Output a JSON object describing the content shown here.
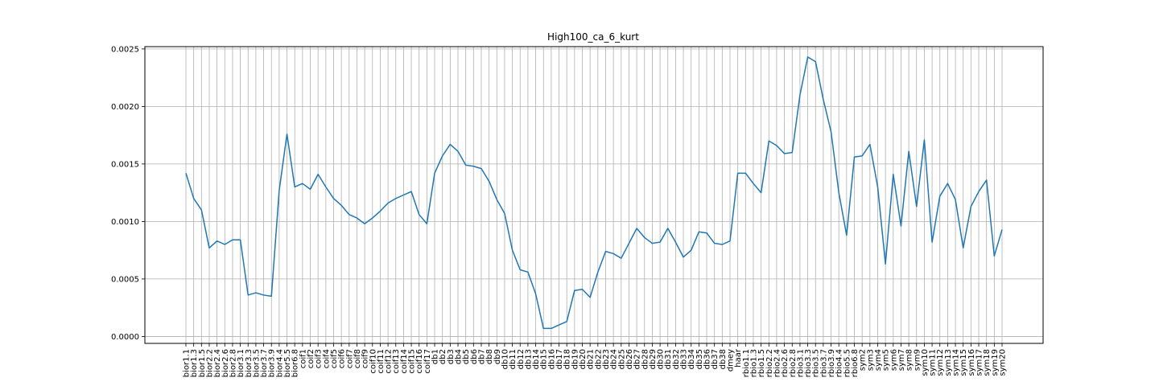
{
  "chart_data": {
    "type": "line",
    "title": "High100_ca_6_kurt",
    "xlabel": "",
    "ylabel": "",
    "grid": true,
    "color": "#1f77b4",
    "ylim": [
      -6e-05,
      0.00252
    ],
    "yticks": [
      "0.0000",
      "0.0005",
      "0.0010",
      "0.0015",
      "0.0020",
      "0.0025"
    ],
    "categories": [
      "bior1.1",
      "bior1.3",
      "bior1.5",
      "bior2.2",
      "bior2.4",
      "bior2.6",
      "bior2.8",
      "bior3.1",
      "bior3.3",
      "bior3.5",
      "bior3.7",
      "bior3.9",
      "bior4.4",
      "bior5.5",
      "bior6.8",
      "coif1",
      "coif2",
      "coif3",
      "coif4",
      "coif5",
      "coif6",
      "coif7",
      "coif8",
      "coif9",
      "coif10",
      "coif11",
      "coif12",
      "coif13",
      "coif14",
      "coif15",
      "coif16",
      "coif17",
      "db1",
      "db2",
      "db3",
      "db4",
      "db5",
      "db6",
      "db7",
      "db8",
      "db9",
      "db10",
      "db11",
      "db12",
      "db13",
      "db14",
      "db15",
      "db16",
      "db17",
      "db18",
      "db19",
      "db20",
      "db21",
      "db22",
      "db23",
      "db24",
      "db25",
      "db26",
      "db27",
      "db28",
      "db29",
      "db30",
      "db31",
      "db32",
      "db33",
      "db34",
      "db35",
      "db36",
      "db37",
      "db38",
      "dmey",
      "haar",
      "rbio1.1",
      "rbio1.3",
      "rbio1.5",
      "rbio2.2",
      "rbio2.4",
      "rbio2.6",
      "rbio2.8",
      "rbio3.1",
      "rbio3.3",
      "rbio3.5",
      "rbio3.7",
      "rbio3.9",
      "rbio4.4",
      "rbio5.5",
      "rbio6.8",
      "sym2",
      "sym3",
      "sym4",
      "sym5",
      "sym6",
      "sym7",
      "sym8",
      "sym9",
      "sym10",
      "sym11",
      "sym12",
      "sym13",
      "sym14",
      "sym15",
      "sym16",
      "sym17",
      "sym18",
      "sym19",
      "sym20"
    ],
    "values": [
      0.00142,
      0.0012,
      0.0011,
      0.00077,
      0.00083,
      0.0008,
      0.00084,
      0.00084,
      0.00036,
      0.00038,
      0.00036,
      0.00035,
      0.00127,
      0.00176,
      0.0013,
      0.00133,
      0.00128,
      0.00141,
      0.0013,
      0.0012,
      0.00114,
      0.00106,
      0.00103,
      0.00098,
      0.00103,
      0.00109,
      0.00116,
      0.0012,
      0.00123,
      0.00126,
      0.00106,
      0.00098,
      0.00142,
      0.00157,
      0.00167,
      0.00161,
      0.00149,
      0.00148,
      0.00146,
      0.00135,
      0.00119,
      0.00107,
      0.00075,
      0.00058,
      0.00056,
      0.00037,
      7e-05,
      7e-05,
      0.0001,
      0.00013,
      0.0004,
      0.00041,
      0.00034,
      0.00056,
      0.00074,
      0.00072,
      0.00068,
      0.00081,
      0.00094,
      0.00086,
      0.00081,
      0.00082,
      0.00094,
      0.00082,
      0.00069,
      0.00075,
      0.00091,
      0.0009,
      0.00081,
      0.0008,
      0.00083,
      0.00142,
      0.00142,
      0.00133,
      0.00125,
      0.0017,
      0.00166,
      0.00159,
      0.0016,
      0.0021,
      0.00243,
      0.00239,
      0.00206,
      0.00178,
      0.00125,
      0.00088,
      0.00156,
      0.00157,
      0.00167,
      0.0013,
      0.00063,
      0.00141,
      0.00096,
      0.00161,
      0.00113,
      0.00171,
      0.00082,
      0.00122,
      0.00133,
      0.00119,
      0.00077,
      0.00113,
      0.00126,
      0.00136,
      0.0007,
      0.00093
    ]
  }
}
